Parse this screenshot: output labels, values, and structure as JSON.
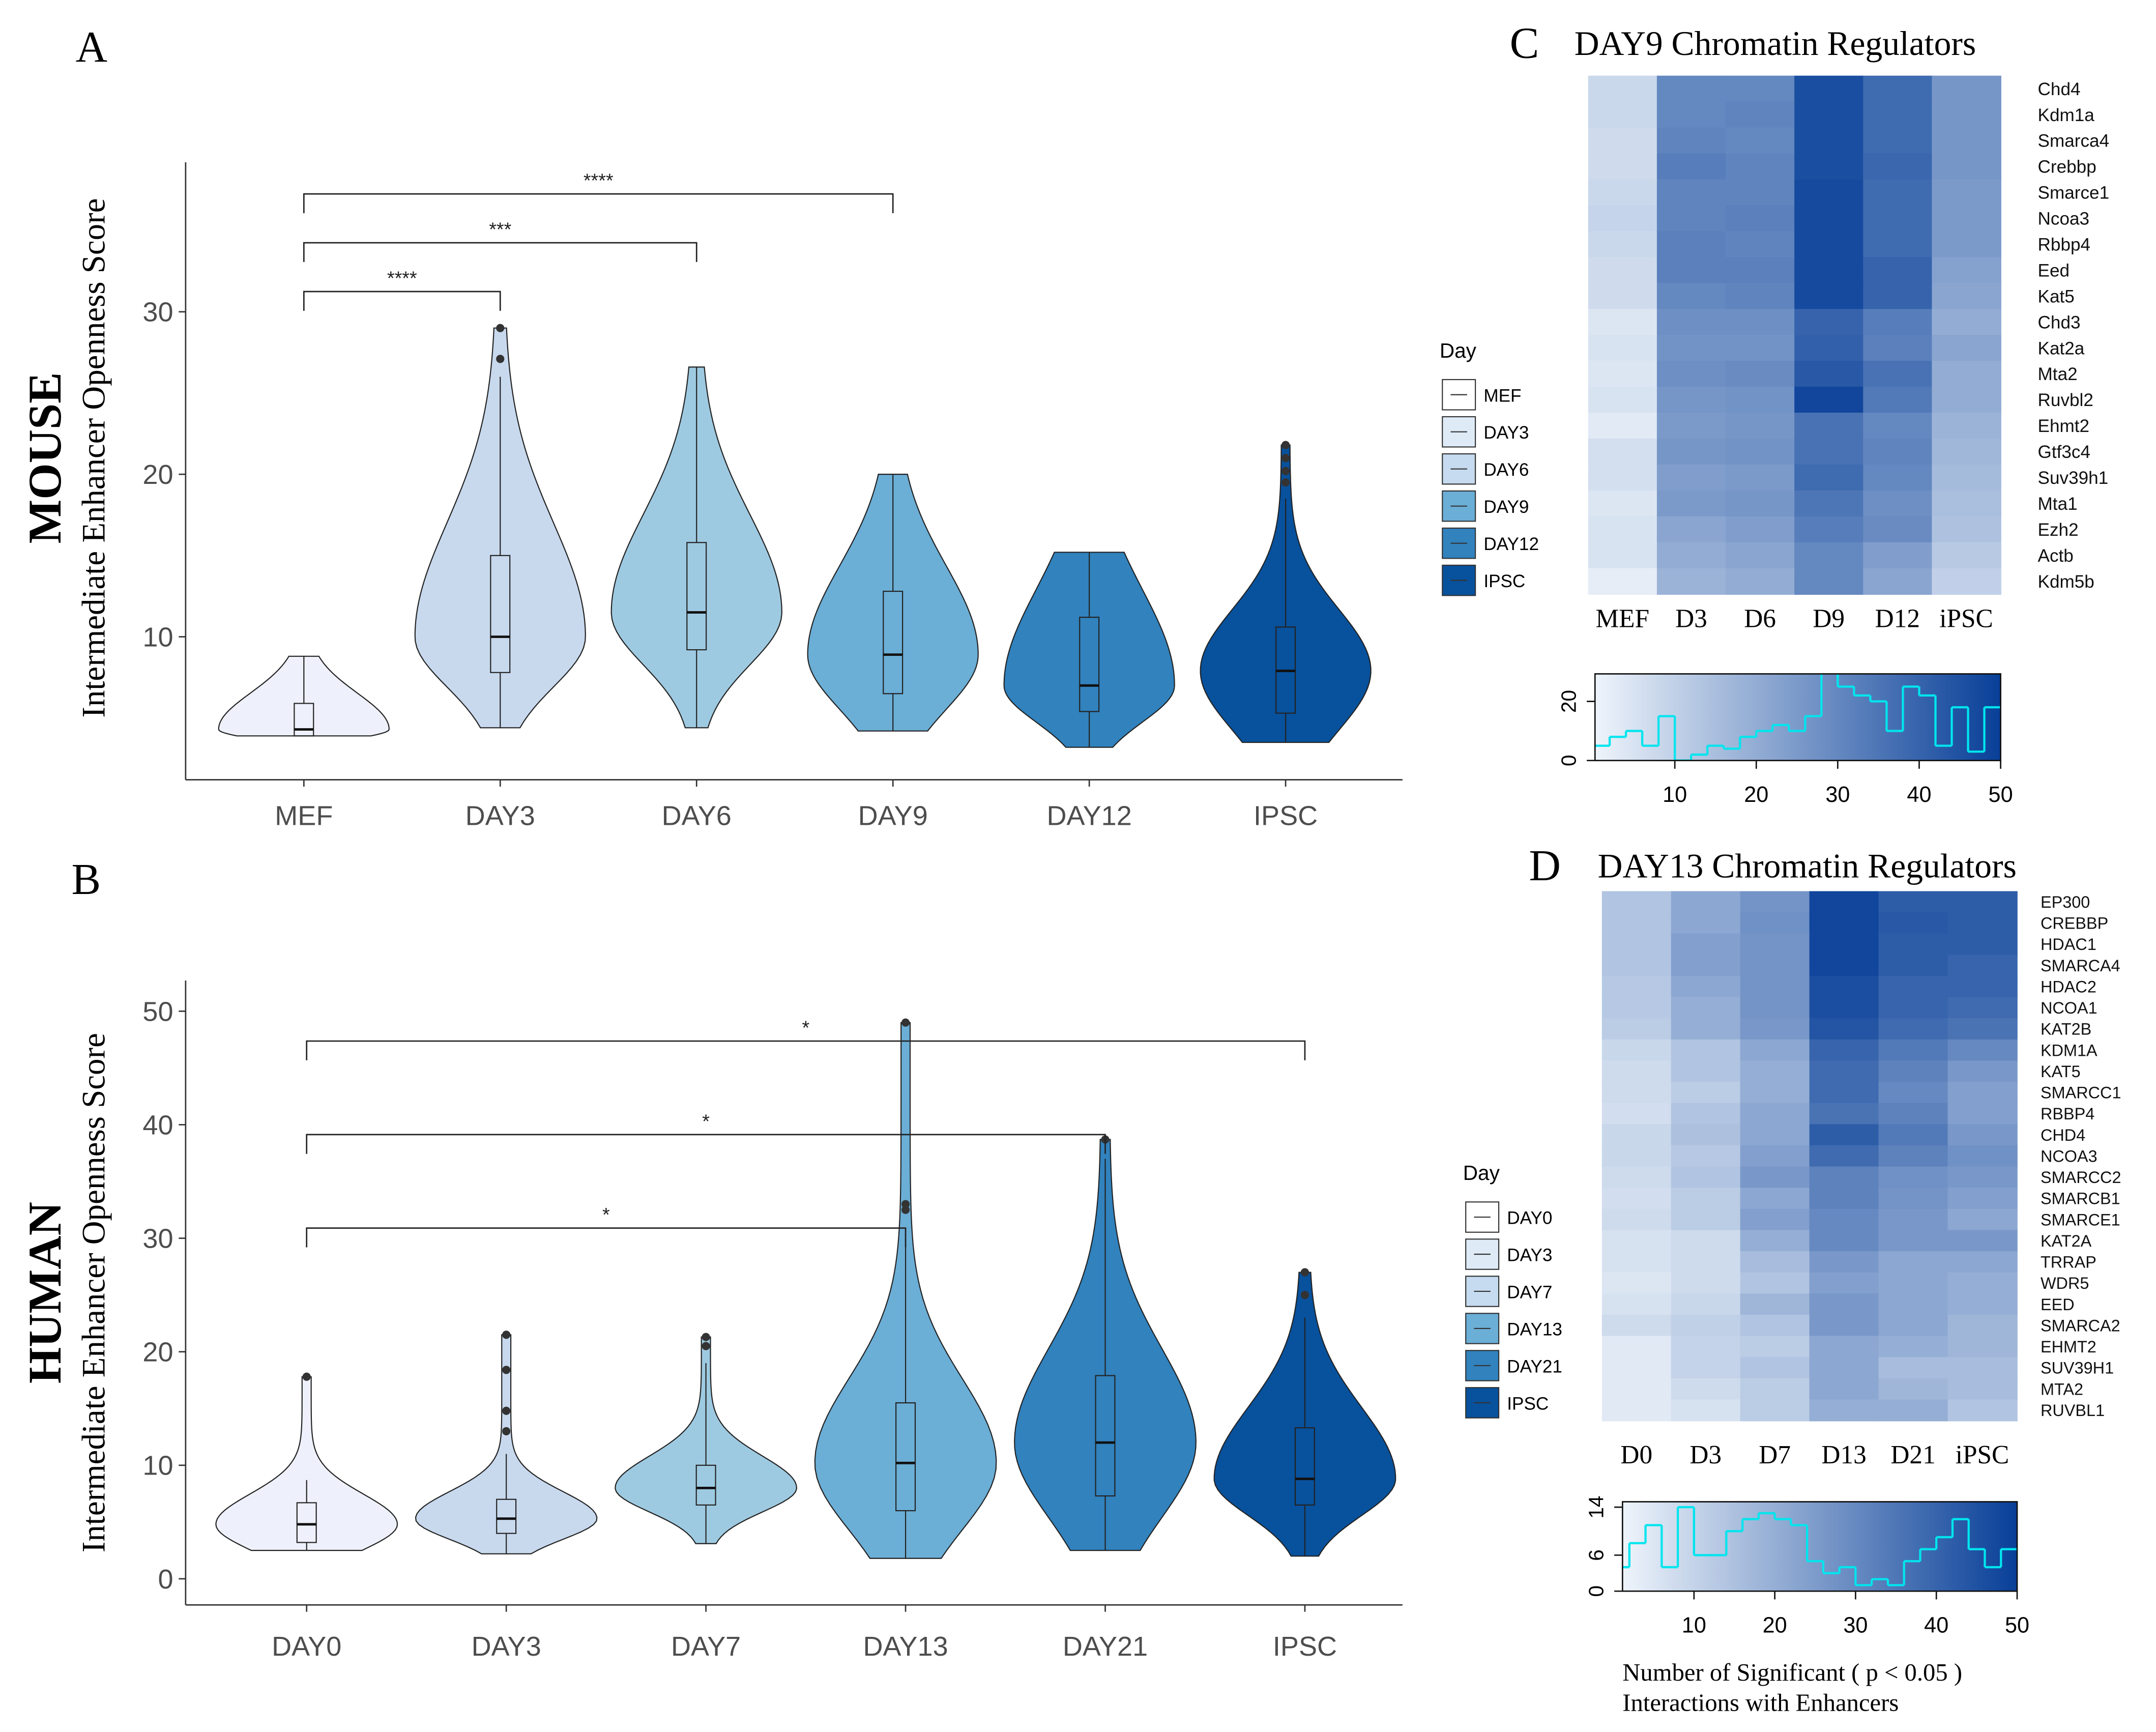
{
  "chart_data": [
    {
      "type": "violin",
      "panel": "A",
      "row_label": "MOUSE",
      "ylabel": "Intermediate Enhancer Openness Score",
      "categories": [
        "MEF",
        "DAY3",
        "DAY6",
        "DAY9",
        "DAY12",
        "IPSC"
      ],
      "colors": [
        "#eef1fb",
        "#c8d9ee",
        "#9ecae1",
        "#6baed6",
        "#3182bd",
        "#08519c"
      ],
      "stats": [
        {
          "low": 3.9,
          "q1": 3.9,
          "median": 4.3,
          "q3": 5.9,
          "high": 8.8,
          "outliers": []
        },
        {
          "low": 4.4,
          "q1": 7.8,
          "median": 10,
          "q3": 15,
          "high": 26,
          "outliers": [
            27.1,
            29
          ]
        },
        {
          "low": 4.4,
          "q1": 9.2,
          "median": 11.5,
          "q3": 15.8,
          "high": 26.6,
          "outliers": []
        },
        {
          "low": 4.2,
          "q1": 6.5,
          "median": 8.9,
          "q3": 12.8,
          "high": 20,
          "outliers": []
        },
        {
          "low": 3.2,
          "q1": 5.4,
          "median": 7,
          "q3": 11.2,
          "high": 15.2,
          "outliers": []
        },
        {
          "low": 3.5,
          "q1": 5.3,
          "median": 7.9,
          "q3": 10.6,
          "high": 18.5,
          "outliers": [
            19.5,
            20.2,
            21,
            21.8
          ]
        }
      ],
      "ylim": [
        1.2,
        39.2
      ],
      "yticks": [
        10,
        20,
        30
      ],
      "comparisons": [
        {
          "label": "****",
          "start": 0,
          "end": 1
        },
        {
          "label": "***",
          "start": 0,
          "end": 2
        },
        {
          "label": "****",
          "start": 0,
          "end": 3
        }
      ]
    },
    {
      "type": "violin",
      "panel": "B",
      "row_label": "HUMAN",
      "ylabel": "Intermediate Enhancer Openness Score",
      "categories": [
        "DAY0",
        "DAY3",
        "DAY7",
        "DAY13",
        "DAY21",
        "IPSC"
      ],
      "colors": [
        "#eef1fb",
        "#c8d9ee",
        "#9ecae1",
        "#6baed6",
        "#3182bd",
        "#08519c"
      ],
      "stats": [
        {
          "low": 2.5,
          "q1": 3.2,
          "median": 4.8,
          "q3": 6.7,
          "high": 8.7,
          "outliers": [
            17.8
          ]
        },
        {
          "low": 2.2,
          "q1": 4,
          "median": 5.3,
          "q3": 7,
          "high": 11,
          "outliers": [
            13,
            14.8,
            18.4,
            21.5
          ]
        },
        {
          "low": 3.1,
          "q1": 6.5,
          "median": 8,
          "q3": 10,
          "high": 19,
          "outliers": [
            20.5,
            21.3
          ]
        },
        {
          "low": 1.8,
          "q1": 6,
          "median": 10.2,
          "q3": 15.5,
          "high": 30,
          "outliers": [
            32.5,
            33,
            49
          ]
        },
        {
          "low": 2.5,
          "q1": 7.3,
          "median": 12,
          "q3": 17.9,
          "high": 37,
          "outliers": [
            38.7
          ]
        },
        {
          "low": 2,
          "q1": 6.5,
          "median": 8.8,
          "q3": 13.3,
          "high": 23,
          "outliers": [
            25,
            27
          ]
        }
      ],
      "ylim": [
        -2.3,
        52.7
      ],
      "yticks": [
        0,
        10,
        20,
        30,
        40,
        50
      ],
      "comparisons": [
        {
          "label": "*",
          "start": 0,
          "end": 3
        },
        {
          "label": "*",
          "start": 0,
          "end": 4
        },
        {
          "label": "*",
          "start": 0,
          "end": 5
        }
      ]
    },
    {
      "type": "heatmap",
      "panel": "C",
      "title": "DAY9 Chromatin Regulators",
      "columns": [
        "MEF",
        "D3",
        "D6",
        "D9",
        "D12",
        "iPSC"
      ],
      "rows": [
        "Chd4",
        "Kdm1a",
        "Smarca4",
        "Crebbp",
        "Smarce1",
        "Ncoa3",
        "Rbbp4",
        "Eed",
        "Kat5",
        "Chd3",
        "Kat2a",
        "Mta2",
        "Ruvbl2",
        "Ehmt2",
        "Gtf3c4",
        "Suv39h1",
        "Mta1",
        "Ezh2",
        "Actb",
        "Kdm5b"
      ],
      "values": [
        [
          8,
          30,
          30,
          46,
          38,
          26
        ],
        [
          8,
          30,
          31,
          46,
          38,
          26
        ],
        [
          7,
          31,
          30,
          46,
          38,
          26
        ],
        [
          7,
          33,
          31,
          46,
          39,
          26
        ],
        [
          8,
          31,
          31,
          47,
          38,
          25
        ],
        [
          9,
          31,
          32,
          47,
          38,
          25
        ],
        [
          8,
          32,
          31,
          47,
          38,
          25
        ],
        [
          7,
          32,
          32,
          47,
          40,
          23
        ],
        [
          7,
          30,
          31,
          47,
          40,
          22
        ],
        [
          4,
          28,
          28,
          40,
          33,
          20
        ],
        [
          5,
          27,
          27,
          41,
          32,
          22
        ],
        [
          4,
          28,
          29,
          43,
          36,
          20
        ],
        [
          5,
          26,
          27,
          48,
          34,
          20
        ],
        [
          3,
          25,
          26,
          36,
          30,
          18
        ],
        [
          6,
          26,
          27,
          36,
          31,
          17
        ],
        [
          6,
          24,
          25,
          38,
          30,
          16
        ],
        [
          4,
          25,
          26,
          35,
          28,
          15
        ],
        [
          5,
          22,
          24,
          33,
          29,
          14
        ],
        [
          5,
          20,
          22,
          30,
          24,
          12
        ],
        [
          2,
          18,
          20,
          30,
          22,
          10
        ]
      ],
      "color_low": "#eef4fb",
      "color_high": "#083f98",
      "legend_title": "Day",
      "legend": [
        {
          "name": "MEF",
          "color": "#ffffff"
        },
        {
          "name": "DAY3",
          "color": "#deebf7"
        },
        {
          "name": "DAY6",
          "color": "#c6dbef"
        },
        {
          "name": "DAY9",
          "color": "#6baed6"
        },
        {
          "name": "DAY12",
          "color": "#3182bd"
        },
        {
          "name": "IPSC",
          "color": "#08519c"
        }
      ],
      "key": {
        "bins": [
          0,
          2,
          4,
          6,
          8,
          10,
          12,
          14,
          16,
          18,
          20,
          22,
          24,
          26,
          28,
          30,
          32,
          34,
          36,
          38,
          40,
          42,
          44,
          46,
          48,
          50
        ],
        "counts": [
          5,
          8,
          10,
          5,
          15,
          0,
          2,
          5,
          4,
          8,
          10,
          12,
          10,
          15,
          30,
          25,
          22,
          20,
          10,
          25,
          22,
          5,
          18,
          3,
          18
        ],
        "line_color": "#00e5ee",
        "xlim": [
          0.2,
          50
        ],
        "xticks": [
          10,
          20,
          30,
          40,
          50
        ],
        "ylim": [
          0,
          29.3
        ],
        "yticks": [
          0,
          20
        ]
      }
    },
    {
      "type": "heatmap",
      "panel": "D",
      "title": "DAY13 Chromatin Regulators",
      "columns": [
        "D0",
        "D3",
        "D7",
        "D13",
        "D21",
        "iPSC"
      ],
      "rows": [
        "EP300",
        "CREBBP",
        "HDAC1",
        "SMARCA4",
        "HDAC2",
        "NCOA1",
        "KAT2B",
        "KDM1A",
        "KAT5",
        "SMARCC1",
        "RBBP4",
        "CHD4",
        "NCOA3",
        "SMARCC2",
        "SMARCB1",
        "SMARCE1",
        "KAT2A",
        "TRRAP",
        "WDR5",
        "EED",
        "SMARCA2",
        "EHMT2",
        "SUV39H1",
        "MTA2",
        "RUVBL1"
      ],
      "values": [
        [
          14,
          22,
          27,
          48,
          42,
          42
        ],
        [
          14,
          22,
          28,
          48,
          43,
          42
        ],
        [
          14,
          24,
          27,
          48,
          42,
          42
        ],
        [
          14,
          24,
          27,
          48,
          42,
          40
        ],
        [
          13,
          22,
          27,
          46,
          40,
          40
        ],
        [
          13,
          20,
          27,
          46,
          40,
          38
        ],
        [
          12,
          20,
          26,
          44,
          38,
          36
        ],
        [
          9,
          14,
          22,
          40,
          34,
          30
        ],
        [
          8,
          14,
          20,
          38,
          32,
          26
        ],
        [
          8,
          12,
          20,
          38,
          30,
          24
        ],
        [
          7,
          14,
          22,
          36,
          32,
          24
        ],
        [
          9,
          15,
          22,
          42,
          34,
          26
        ],
        [
          9,
          13,
          24,
          38,
          32,
          28
        ],
        [
          8,
          14,
          26,
          32,
          28,
          26
        ],
        [
          7,
          12,
          22,
          32,
          27,
          24
        ],
        [
          8,
          12,
          24,
          30,
          26,
          22
        ],
        [
          6,
          8,
          20,
          30,
          26,
          26
        ],
        [
          6,
          8,
          16,
          26,
          22,
          22
        ],
        [
          5,
          8,
          14,
          24,
          22,
          20
        ],
        [
          6,
          9,
          18,
          26,
          22,
          20
        ],
        [
          8,
          11,
          14,
          26,
          22,
          18
        ],
        [
          4,
          10,
          12,
          22,
          20,
          18
        ],
        [
          4,
          10,
          14,
          22,
          16,
          16
        ],
        [
          4,
          8,
          12,
          22,
          18,
          16
        ],
        [
          4,
          6,
          12,
          20,
          20,
          14
        ]
      ],
      "color_low": "#eef4fb",
      "color_high": "#083f98",
      "legend_title": "Day",
      "legend": [
        {
          "name": "DAY0",
          "color": "#ffffff"
        },
        {
          "name": "DAY3",
          "color": "#deebf7"
        },
        {
          "name": "DAY7",
          "color": "#c6dbef"
        },
        {
          "name": "DAY13",
          "color": "#6baed6"
        },
        {
          "name": "DAY21",
          "color": "#3182bd"
        },
        {
          "name": "IPSC",
          "color": "#08519c"
        }
      ],
      "key": {
        "bins": [
          0,
          2,
          4,
          6,
          8,
          10,
          12,
          14,
          16,
          18,
          20,
          22,
          24,
          26,
          28,
          30,
          32,
          34,
          36,
          38,
          40,
          42,
          44,
          46,
          48,
          50
        ],
        "counts": [
          4,
          8,
          11,
          4,
          14,
          6,
          6,
          10,
          12,
          13,
          12,
          11,
          5,
          3,
          4,
          1,
          2,
          1,
          5,
          7,
          9,
          12,
          7,
          4,
          7
        ],
        "line_color": "#00e5ee",
        "xlim": [
          1.15,
          50
        ],
        "xticks": [
          10,
          20,
          30,
          40,
          50
        ],
        "ylim": [
          0,
          14.9
        ],
        "yticks": [
          0,
          6,
          14
        ],
        "xlabel": [
          "Number of Significant ( p < 0.05 )",
          "Interactions with Enhancers"
        ]
      }
    }
  ]
}
